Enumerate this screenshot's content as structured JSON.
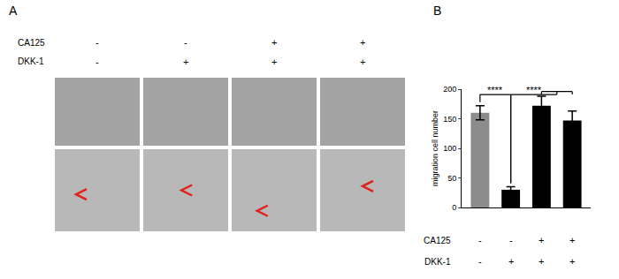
{
  "panel_labels": [
    "A",
    "B"
  ],
  "panel_a": {
    "treatments": [
      {
        "name": "CA125",
        "signs": [
          "-",
          "-",
          "+",
          "+"
        ]
      },
      {
        "name": "DKK-1",
        "signs": [
          "-",
          "+",
          "+",
          "+"
        ]
      }
    ]
  },
  "chart_data": {
    "type": "bar",
    "categories": [
      null,
      null,
      null,
      null
    ],
    "values": [
      160,
      30,
      172,
      147
    ],
    "errors": [
      12,
      5,
      16,
      16
    ],
    "colors": [
      "#8c8c8c",
      "#000000",
      "#000000",
      "#000000"
    ],
    "ylabel": "migration cell number",
    "ylim": [
      0,
      200
    ],
    "yticks": [
      0,
      50,
      100,
      150,
      200
    ],
    "tick_labels": "y",
    "grid": false,
    "treatments": [
      {
        "name": "CA125",
        "signs": [
          "-",
          "-",
          "+",
          "+"
        ]
      },
      {
        "name": "DKK-1",
        "signs": [
          "-",
          "+",
          "+",
          "+"
        ]
      }
    ],
    "significance": [
      {
        "from": 0,
        "to": [
          1
        ],
        "label": "****"
      },
      {
        "from": 1,
        "to": [
          2,
          3
        ],
        "label": "****"
      }
    ]
  }
}
